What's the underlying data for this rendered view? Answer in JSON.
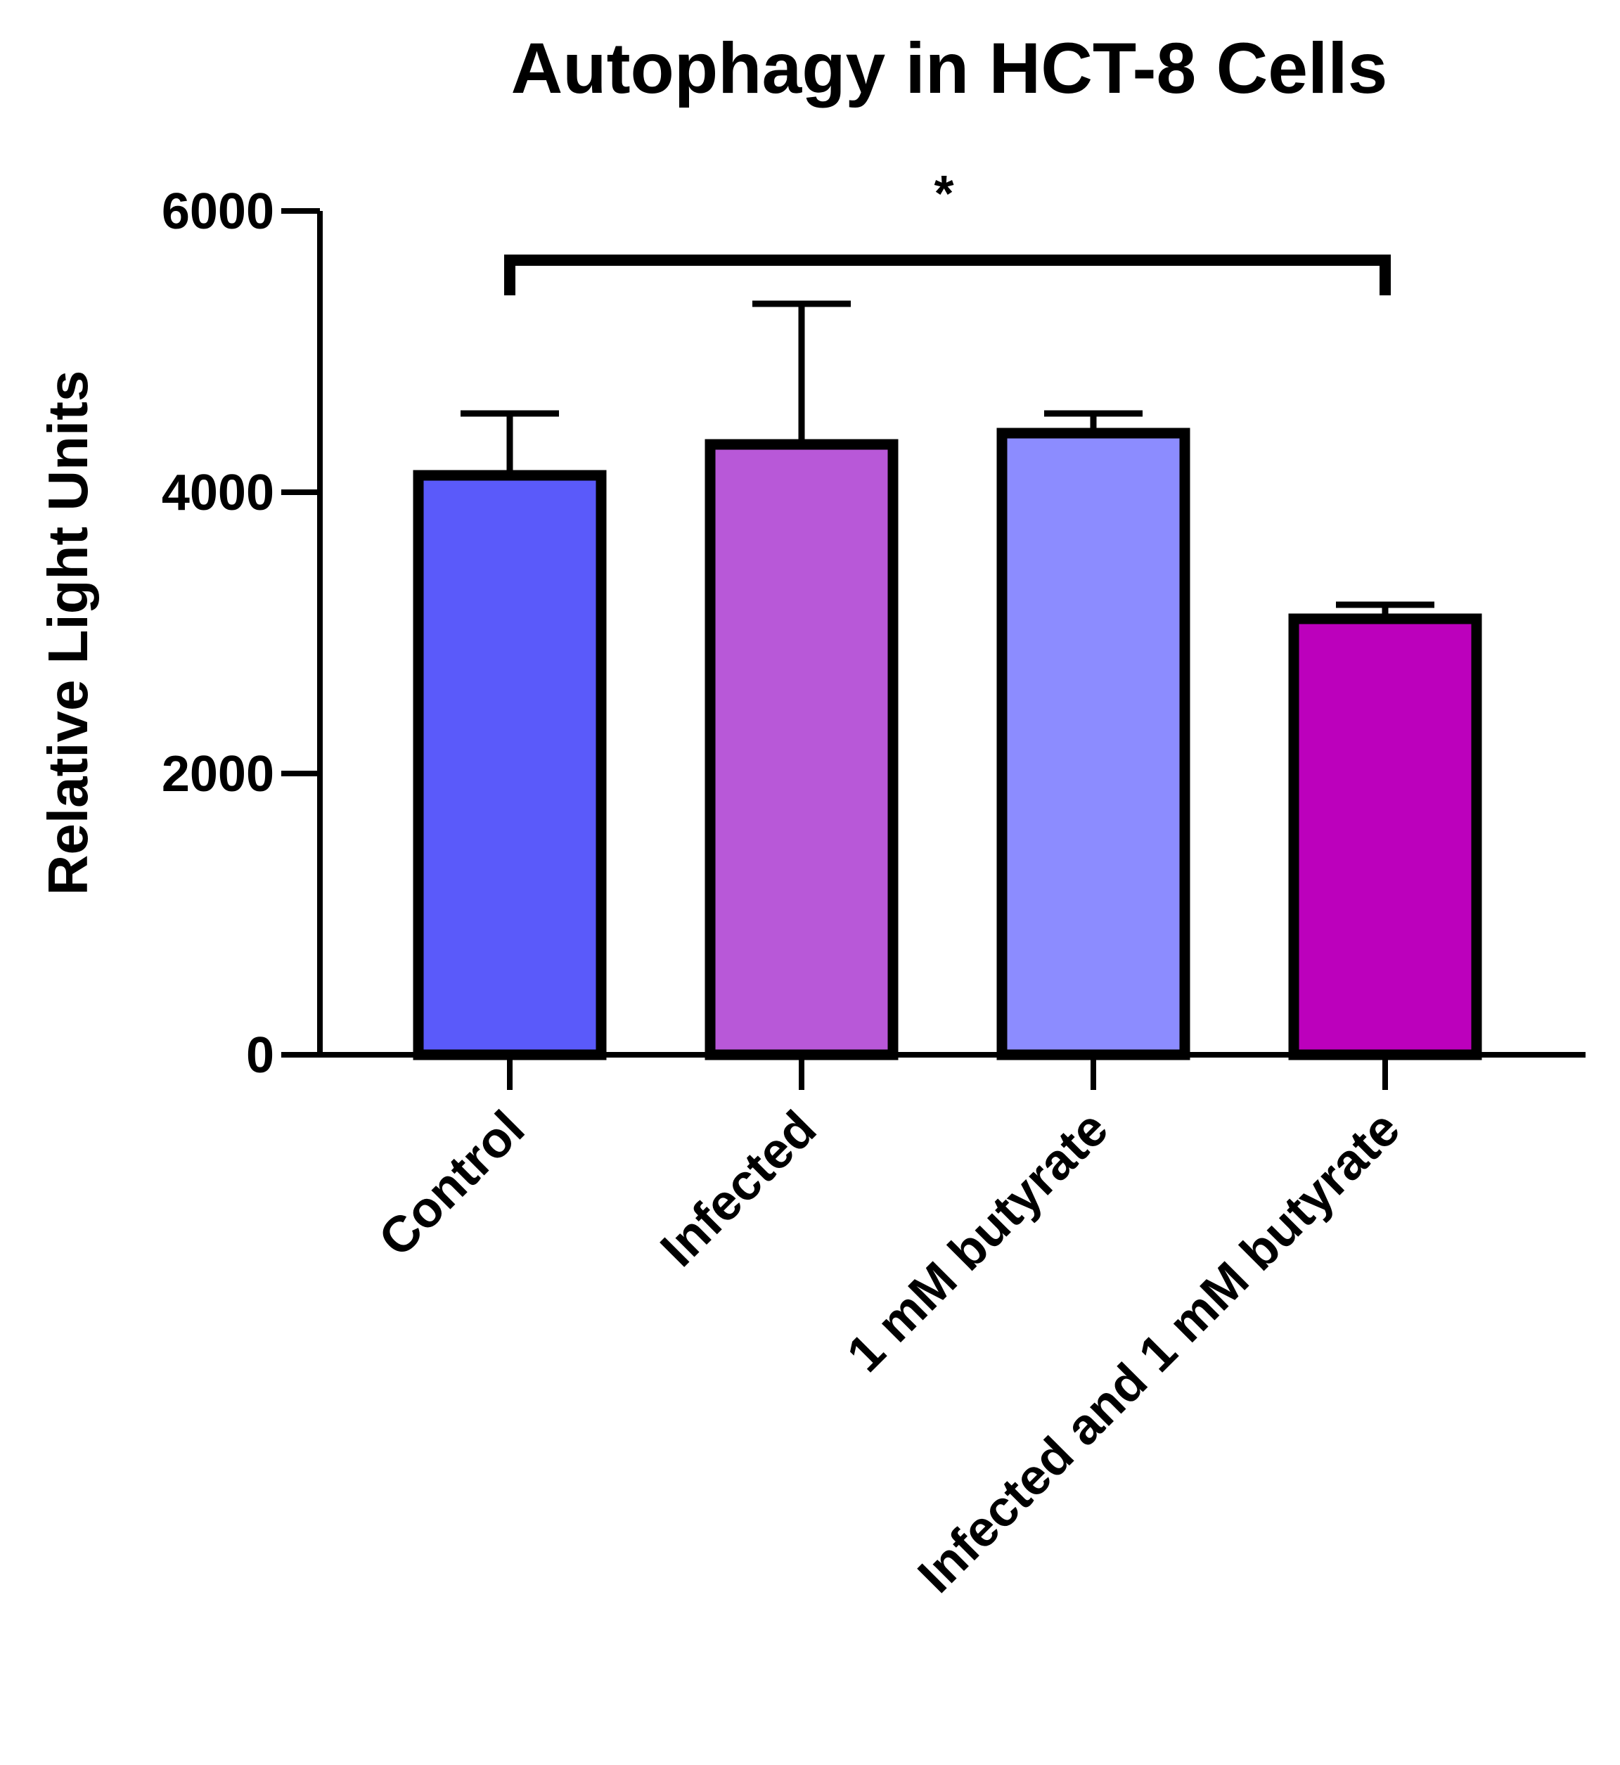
{
  "chart_data": {
    "type": "bar",
    "title": "Autophagy in HCT-8 Cells",
    "xlabel": "",
    "ylabel": "Relative Light Units",
    "ylim": [
      0,
      6000
    ],
    "yticks": [
      0,
      2000,
      4000,
      6000
    ],
    "yticks_text": [
      "0",
      "2000",
      "4000",
      "6000"
    ],
    "grid": false,
    "categories": [
      "Control",
      "Infected",
      "1 mM butyrate",
      "Infected and 1 mM butyrate"
    ],
    "values": [
      4120,
      4340,
      4420,
      3100
    ],
    "error_upper": [
      4560,
      5340,
      4560,
      3200
    ],
    "colors": [
      "#5a5afa",
      "#b858d8",
      "#8c8cff",
      "#bc00bc"
    ],
    "significance": {
      "from": 0,
      "to": 3,
      "label": "*"
    }
  }
}
